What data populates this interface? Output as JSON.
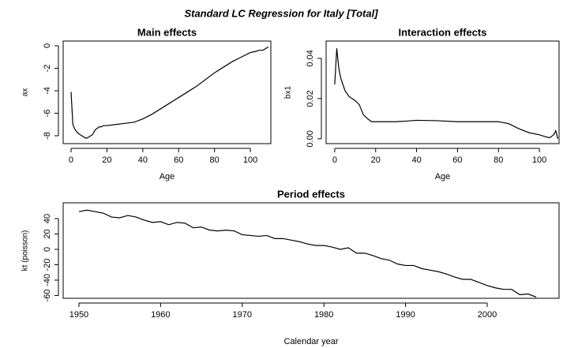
{
  "title": "Standard LC Regression for Italy [Total]",
  "chart_data": [
    {
      "type": "line",
      "title": "Main effects",
      "xlabel": "Age",
      "ylabel": "ax",
      "color": "#000000",
      "x": [
        0,
        1,
        2,
        3,
        4,
        5,
        6,
        7,
        8,
        9,
        10,
        11,
        12,
        13,
        14,
        15,
        16,
        17,
        18,
        20,
        25,
        30,
        35,
        40,
        45,
        50,
        55,
        60,
        65,
        70,
        75,
        80,
        85,
        90,
        95,
        100,
        103,
        105,
        107,
        108,
        109,
        110
      ],
      "values": [
        -4.1,
        -7.0,
        -7.4,
        -7.6,
        -7.8,
        -7.9,
        -8.0,
        -8.1,
        -8.2,
        -8.2,
        -8.1,
        -8.0,
        -7.9,
        -7.6,
        -7.4,
        -7.3,
        -7.2,
        -7.2,
        -7.1,
        -7.1,
        -7.0,
        -6.9,
        -6.8,
        -6.5,
        -6.1,
        -5.6,
        -5.1,
        -4.6,
        -4.1,
        -3.6,
        -3.0,
        -2.4,
        -1.9,
        -1.4,
        -1.0,
        -0.6,
        -0.5,
        -0.4,
        -0.4,
        -0.3,
        -0.2,
        -0.1
      ],
      "xlim": [
        -4.4,
        111.4
      ],
      "ylim": [
        -8.7,
        0.42
      ],
      "xticks": [
        0,
        20,
        40,
        60,
        80,
        100
      ],
      "yticks": [
        0,
        -2,
        -4,
        -6,
        -8
      ]
    },
    {
      "type": "line",
      "title": "Interaction effects",
      "xlabel": "Age",
      "ylabel": "bx1",
      "color": "#000000",
      "x": [
        0,
        1,
        2,
        3,
        5,
        7,
        10,
        12,
        14,
        16,
        18,
        20,
        25,
        30,
        35,
        40,
        50,
        60,
        70,
        80,
        85,
        90,
        95,
        100,
        103,
        105,
        107,
        108,
        109
      ],
      "values": [
        0.027,
        0.045,
        0.035,
        0.03,
        0.024,
        0.021,
        0.019,
        0.017,
        0.012,
        0.01,
        0.0085,
        0.0085,
        0.0085,
        0.0085,
        0.0088,
        0.0092,
        0.009,
        0.0085,
        0.0085,
        0.0085,
        0.0075,
        0.005,
        0.003,
        0.002,
        0.001,
        0.0005,
        0.002,
        0.004,
        0.0
      ],
      "xlim": [
        -4.2,
        109.6
      ],
      "ylim": [
        -0.0024,
        0.0486
      ],
      "xticks": [
        0,
        20,
        40,
        60,
        80,
        100
      ],
      "yticks": [
        {
          "value": 0,
          "label": "0.00"
        },
        {
          "value": 0.02,
          "label": "0.02"
        },
        {
          "value": 0.04,
          "label": "0.04"
        }
      ]
    },
    {
      "type": "line",
      "title": "Period effects",
      "xlabel": "Calendar year",
      "ylabel": "kt (poisson)",
      "color": "#000000",
      "x": [
        1950,
        1951,
        1952,
        1953,
        1954,
        1955,
        1956,
        1957,
        1958,
        1959,
        1960,
        1961,
        1962,
        1963,
        1964,
        1965,
        1966,
        1967,
        1968,
        1969,
        1970,
        1971,
        1972,
        1973,
        1974,
        1975,
        1976,
        1977,
        1978,
        1979,
        1980,
        1981,
        1982,
        1983,
        1984,
        1985,
        1986,
        1987,
        1988,
        1989,
        1990,
        1991,
        1992,
        1993,
        1994,
        1995,
        1996,
        1997,
        1998,
        1999,
        2000,
        2001,
        2002,
        2003,
        2004,
        2005,
        2006
      ],
      "values": [
        49,
        51,
        49,
        47,
        42,
        41,
        44,
        42,
        38,
        35,
        36,
        32,
        35,
        34,
        28,
        29,
        25,
        24,
        25,
        24,
        19,
        18,
        17,
        18,
        14,
        14,
        12,
        10,
        7,
        5,
        5,
        3,
        0,
        2,
        -5,
        -5,
        -8,
        -12,
        -14,
        -19,
        -21,
        -21,
        -25,
        -27,
        -29,
        -32,
        -36,
        -39,
        -39,
        -43,
        -47,
        -50,
        -52,
        -52,
        -59,
        -58,
        -62
      ],
      "xlim": [
        1948.07,
        2008.8
      ],
      "ylim": [
        -63.6,
        60.5
      ],
      "xticks": [
        1950,
        1960,
        1970,
        1980,
        1990,
        2000
      ],
      "yticks": [
        40,
        20,
        0,
        -20,
        -40,
        -60
      ]
    }
  ]
}
